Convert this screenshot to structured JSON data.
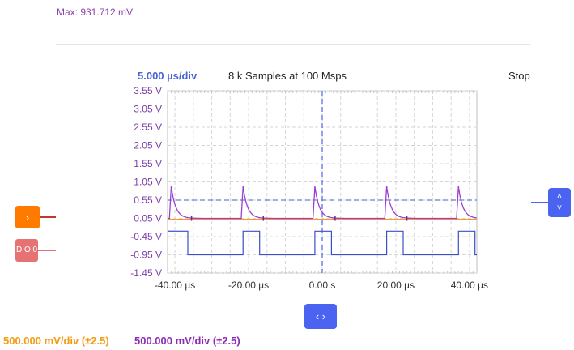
{
  "header": {
    "max_readout": "Max: 931.712 mV"
  },
  "scope": {
    "timebase": "5.000 µs/div",
    "samples": "8 k Samples at 100 Msps",
    "run_state": "Stop",
    "y_ticks": [
      "3.55 V",
      "3.05 V",
      "2.55 V",
      "2.05 V",
      "1.55 V",
      "1.05 V",
      "0.55 V",
      "0.05 V",
      "-0.45 V",
      "-0.95 V",
      "-1.45 V"
    ],
    "x_ticks": [
      "-40.00 µs",
      "-20.00 µs",
      "0.00 s",
      "20.00 µs",
      "40.00 µs"
    ]
  },
  "left_markers": {
    "channel_button_icon": "chevron-right-icon",
    "channel_button_glyph": "›",
    "dio_label": "DIO 0"
  },
  "controls": {
    "vscroll_up": "˄",
    "vscroll_down": "˅",
    "hscroll_label": "‹ ›"
  },
  "footer": {
    "ch1_scale": "500.000 mV/div (±2.5)",
    "ch2_scale": "500.000 mV/div (±2.5)"
  },
  "colors": {
    "ch1": "#ff8c00",
    "ch2": "#9b3fd1",
    "dio": "#3b4fc8",
    "accent": "#4a63f0",
    "grid": "#d5d5d5"
  },
  "chart_data": {
    "type": "line",
    "xlabel": "",
    "ylabel": "",
    "xlim": [
      -42,
      42
    ],
    "ylim": [
      -1.45,
      3.55
    ],
    "x_unit": "µs",
    "y_unit": "V",
    "trigger_level": 0.55,
    "pulse_period_us": 19.5,
    "pulse_times_us": [
      -41,
      -21.5,
      -2,
      17.5,
      37
    ],
    "series": [
      {
        "kind": "spikes",
        "peak": 0.93,
        "baseline": 0.05,
        "decay_us": 1.2
      },
      {
        "kind": "flat",
        "level": 0.02
      },
      {
        "kind": "digital",
        "high": -0.3,
        "low": -0.95,
        "edges_us": [
          -36.5,
          -21.5,
          -17,
          -2,
          2.5,
          17.5,
          22,
          37,
          41.5
        ]
      }
    ]
  }
}
